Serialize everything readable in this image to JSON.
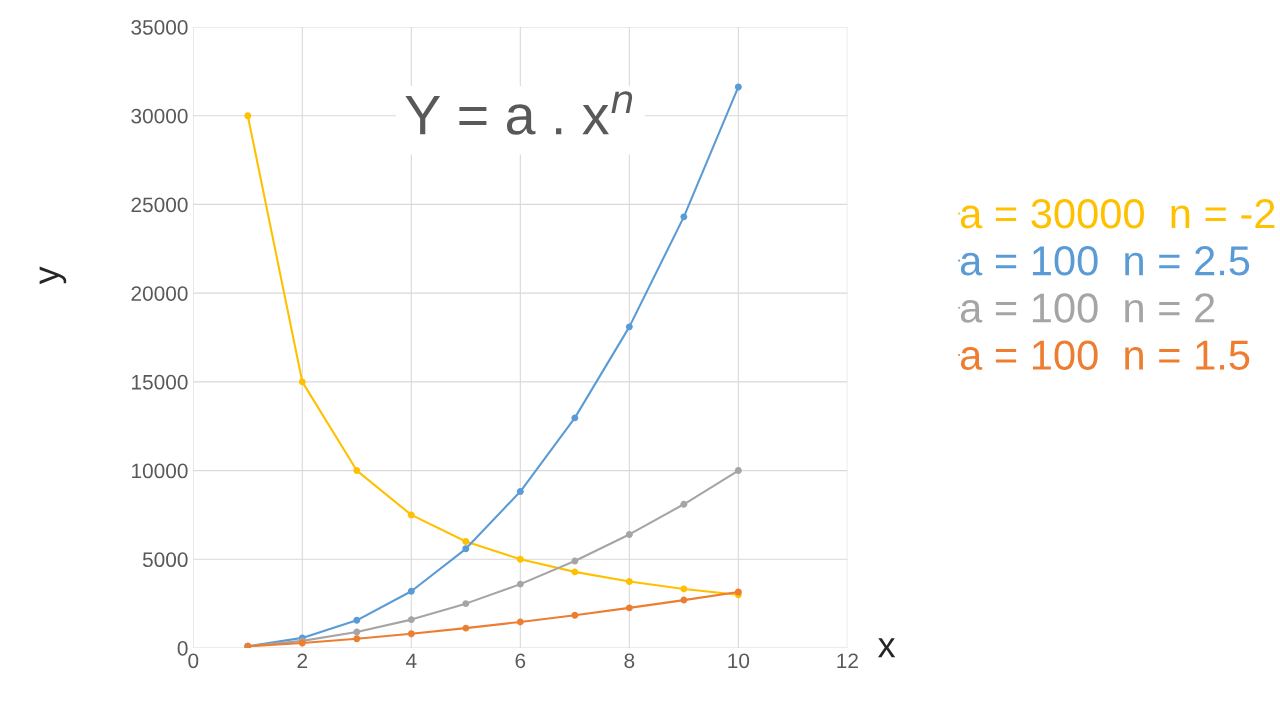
{
  "chart_data": {
    "type": "line",
    "title": "Y = a . x$^{n}$",
    "xlabel": "x",
    "ylabel": "y",
    "x": [
      1,
      2,
      3,
      4,
      5,
      6,
      7,
      8,
      9,
      10
    ],
    "series": [
      {
        "name": "a = 30000  n = -2",
        "color": "#ffc000",
        "values": [
          30000,
          15000,
          10000,
          7500,
          6000,
          5000,
          4290,
          3750,
          3330,
          3000
        ]
      },
      {
        "name": "a = 100  n = 2.5",
        "color": "#5b9bd5",
        "values": [
          100,
          570,
          1560,
          3200,
          5590,
          8820,
          12970,
          18100,
          24300,
          31620
        ]
      },
      {
        "name": "a = 100  n = 2",
        "color": "#a5a5a5",
        "values": [
          100,
          400,
          900,
          1600,
          2500,
          3600,
          4900,
          6400,
          8100,
          10000
        ]
      },
      {
        "name": "a = 100  n = 1.5",
        "color": "#ed7d31",
        "values": [
          100,
          280,
          520,
          800,
          1120,
          1470,
          1850,
          2260,
          2700,
          3160
        ]
      }
    ],
    "xlim": [
      0,
      12
    ],
    "xticks": [
      0,
      2,
      4,
      6,
      8,
      10,
      12
    ],
    "ylim": [
      0,
      35000
    ],
    "yticks": [
      0,
      5000,
      10000,
      15000,
      20000,
      25000,
      30000,
      35000
    ],
    "grid": true,
    "legend": "right",
    "marker": "circle",
    "line_style": "solid"
  }
}
